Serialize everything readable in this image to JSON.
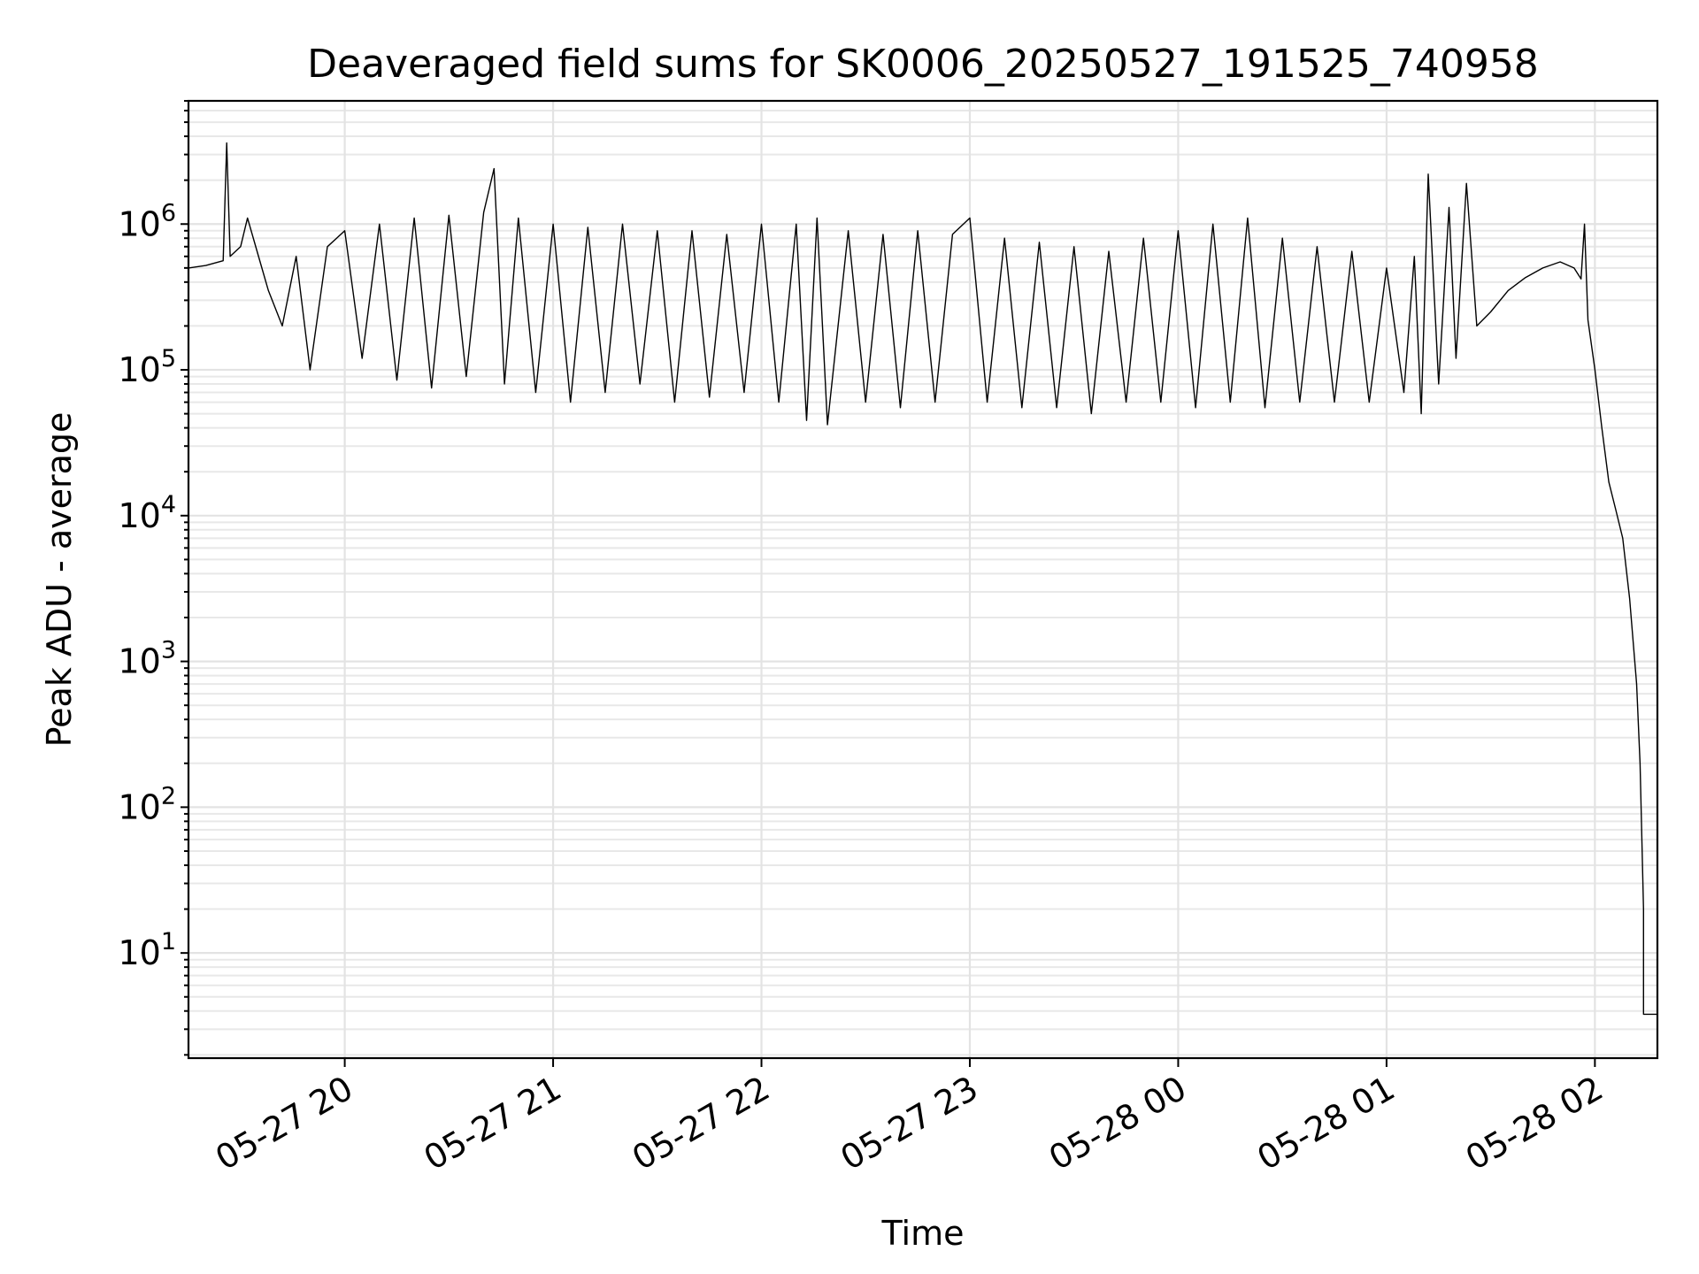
{
  "chart_data": {
    "type": "line",
    "title": "Deaveraged field sums for SK0006_20250527_191525_740958",
    "xlabel": "Time",
    "ylabel": "Peak ADU - average",
    "xscale": "time",
    "yscale": "log",
    "xlim": [
      "2025-05-27 19:15",
      "2025-05-28 02:18"
    ],
    "ylim": [
      1.9,
      7000000
    ],
    "grid": true,
    "x_ticks": [
      {
        "t": "2025-05-27 20:00",
        "label": "05-27 20"
      },
      {
        "t": "2025-05-27 21:00",
        "label": "05-27 21"
      },
      {
        "t": "2025-05-27 22:00",
        "label": "05-27 22"
      },
      {
        "t": "2025-05-27 23:00",
        "label": "05-27 23"
      },
      {
        "t": "2025-05-28 00:00",
        "label": "05-28 00"
      },
      {
        "t": "2025-05-28 01:00",
        "label": "05-28 01"
      },
      {
        "t": "2025-05-28 02:00",
        "label": "05-28 02"
      }
    ],
    "y_ticks": [
      {
        "value": 10,
        "base": "10",
        "exp": "1"
      },
      {
        "value": 100,
        "base": "10",
        "exp": "2"
      },
      {
        "value": 1000,
        "base": "10",
        "exp": "3"
      },
      {
        "value": 10000,
        "base": "10",
        "exp": "4"
      },
      {
        "value": 100000,
        "base": "10",
        "exp": "5"
      },
      {
        "value": 1000000,
        "base": "10",
        "exp": "6"
      }
    ],
    "series": [
      {
        "color": "#000000",
        "points": [
          [
            "2025-05-27 19:15",
            500000
          ],
          [
            "2025-05-27 19:20",
            520000
          ],
          [
            "2025-05-27 19:25",
            560000
          ],
          [
            "2025-05-27 19:26",
            3600000
          ],
          [
            "2025-05-27 19:27",
            600000
          ],
          [
            "2025-05-27 19:30",
            700000
          ],
          [
            "2025-05-27 19:32",
            1100000
          ],
          [
            "2025-05-27 19:35",
            620000
          ],
          [
            "2025-05-27 19:38",
            350000
          ],
          [
            "2025-05-27 19:42",
            200000
          ],
          [
            "2025-05-27 19:46",
            600000
          ],
          [
            "2025-05-27 19:50",
            100000
          ],
          [
            "2025-05-27 19:55",
            700000
          ],
          [
            "2025-05-27 20:00",
            900000
          ],
          [
            "2025-05-27 20:05",
            120000
          ],
          [
            "2025-05-27 20:10",
            1000000
          ],
          [
            "2025-05-27 20:15",
            85000
          ],
          [
            "2025-05-27 20:20",
            1100000
          ],
          [
            "2025-05-27 20:25",
            75000
          ],
          [
            "2025-05-27 20:30",
            1150000
          ],
          [
            "2025-05-27 20:35",
            90000
          ],
          [
            "2025-05-27 20:40",
            1200000
          ],
          [
            "2025-05-27 20:43",
            2400000
          ],
          [
            "2025-05-27 20:46",
            80000
          ],
          [
            "2025-05-27 20:50",
            1100000
          ],
          [
            "2025-05-27 20:55",
            70000
          ],
          [
            "2025-05-27 21:00",
            1000000
          ],
          [
            "2025-05-27 21:05",
            60000
          ],
          [
            "2025-05-27 21:10",
            950000
          ],
          [
            "2025-05-27 21:15",
            70000
          ],
          [
            "2025-05-27 21:20",
            1000000
          ],
          [
            "2025-05-27 21:25",
            80000
          ],
          [
            "2025-05-27 21:30",
            900000
          ],
          [
            "2025-05-27 21:35",
            60000
          ],
          [
            "2025-05-27 21:40",
            900000
          ],
          [
            "2025-05-27 21:45",
            65000
          ],
          [
            "2025-05-27 21:50",
            850000
          ],
          [
            "2025-05-27 21:55",
            70000
          ],
          [
            "2025-05-27 22:00",
            1000000
          ],
          [
            "2025-05-27 22:05",
            60000
          ],
          [
            "2025-05-27 22:10",
            1000000
          ],
          [
            "2025-05-27 22:13",
            45000
          ],
          [
            "2025-05-27 22:16",
            1100000
          ],
          [
            "2025-05-27 22:19",
            42000
          ],
          [
            "2025-05-27 22:25",
            900000
          ],
          [
            "2025-05-27 22:30",
            60000
          ],
          [
            "2025-05-27 22:35",
            850000
          ],
          [
            "2025-05-27 22:40",
            55000
          ],
          [
            "2025-05-27 22:45",
            900000
          ],
          [
            "2025-05-27 22:50",
            60000
          ],
          [
            "2025-05-27 22:55",
            850000
          ],
          [
            "2025-05-27 23:00",
            1100000
          ],
          [
            "2025-05-27 23:05",
            60000
          ],
          [
            "2025-05-27 23:10",
            800000
          ],
          [
            "2025-05-27 23:15",
            55000
          ],
          [
            "2025-05-27 23:20",
            750000
          ],
          [
            "2025-05-27 23:25",
            55000
          ],
          [
            "2025-05-27 23:30",
            700000
          ],
          [
            "2025-05-27 23:35",
            50000
          ],
          [
            "2025-05-27 23:40",
            650000
          ],
          [
            "2025-05-27 23:45",
            60000
          ],
          [
            "2025-05-27 23:50",
            800000
          ],
          [
            "2025-05-27 23:55",
            60000
          ],
          [
            "2025-05-28 00:00",
            900000
          ],
          [
            "2025-05-28 00:05",
            55000
          ],
          [
            "2025-05-28 00:10",
            1000000
          ],
          [
            "2025-05-28 00:15",
            60000
          ],
          [
            "2025-05-28 00:20",
            1100000
          ],
          [
            "2025-05-28 00:25",
            55000
          ],
          [
            "2025-05-28 00:30",
            800000
          ],
          [
            "2025-05-28 00:35",
            60000
          ],
          [
            "2025-05-28 00:40",
            700000
          ],
          [
            "2025-05-28 00:45",
            60000
          ],
          [
            "2025-05-28 00:50",
            650000
          ],
          [
            "2025-05-28 00:55",
            60000
          ],
          [
            "2025-05-28 01:00",
            500000
          ],
          [
            "2025-05-28 01:05",
            70000
          ],
          [
            "2025-05-28 01:08",
            600000
          ],
          [
            "2025-05-28 01:10",
            50000
          ],
          [
            "2025-05-28 01:12",
            2200000
          ],
          [
            "2025-05-28 01:15",
            80000
          ],
          [
            "2025-05-28 01:18",
            1300000
          ],
          [
            "2025-05-28 01:20",
            120000
          ],
          [
            "2025-05-28 01:23",
            1900000
          ],
          [
            "2025-05-28 01:26",
            200000
          ],
          [
            "2025-05-28 01:30",
            250000
          ],
          [
            "2025-05-28 01:35",
            350000
          ],
          [
            "2025-05-28 01:40",
            430000
          ],
          [
            "2025-05-28 01:45",
            500000
          ],
          [
            "2025-05-28 01:50",
            550000
          ],
          [
            "2025-05-28 01:54",
            500000
          ],
          [
            "2025-05-28 01:56",
            420000
          ],
          [
            "2025-05-28 01:57",
            1000000
          ],
          [
            "2025-05-28 01:58",
            220000
          ],
          [
            "2025-05-28 02:00",
            100000
          ],
          [
            "2025-05-28 02:02",
            40000
          ],
          [
            "2025-05-28 02:04",
            17000
          ],
          [
            "2025-05-28 02:06",
            11000
          ],
          [
            "2025-05-28 02:08",
            7000
          ],
          [
            "2025-05-28 02:10",
            2700
          ],
          [
            "2025-05-28 02:12",
            700
          ],
          [
            "2025-05-28 02:13",
            200
          ],
          [
            "2025-05-28 02:14",
            20
          ],
          [
            "2025-05-28 02:14",
            3.8
          ],
          [
            "2025-05-28 02:18",
            3.8
          ]
        ]
      }
    ]
  }
}
